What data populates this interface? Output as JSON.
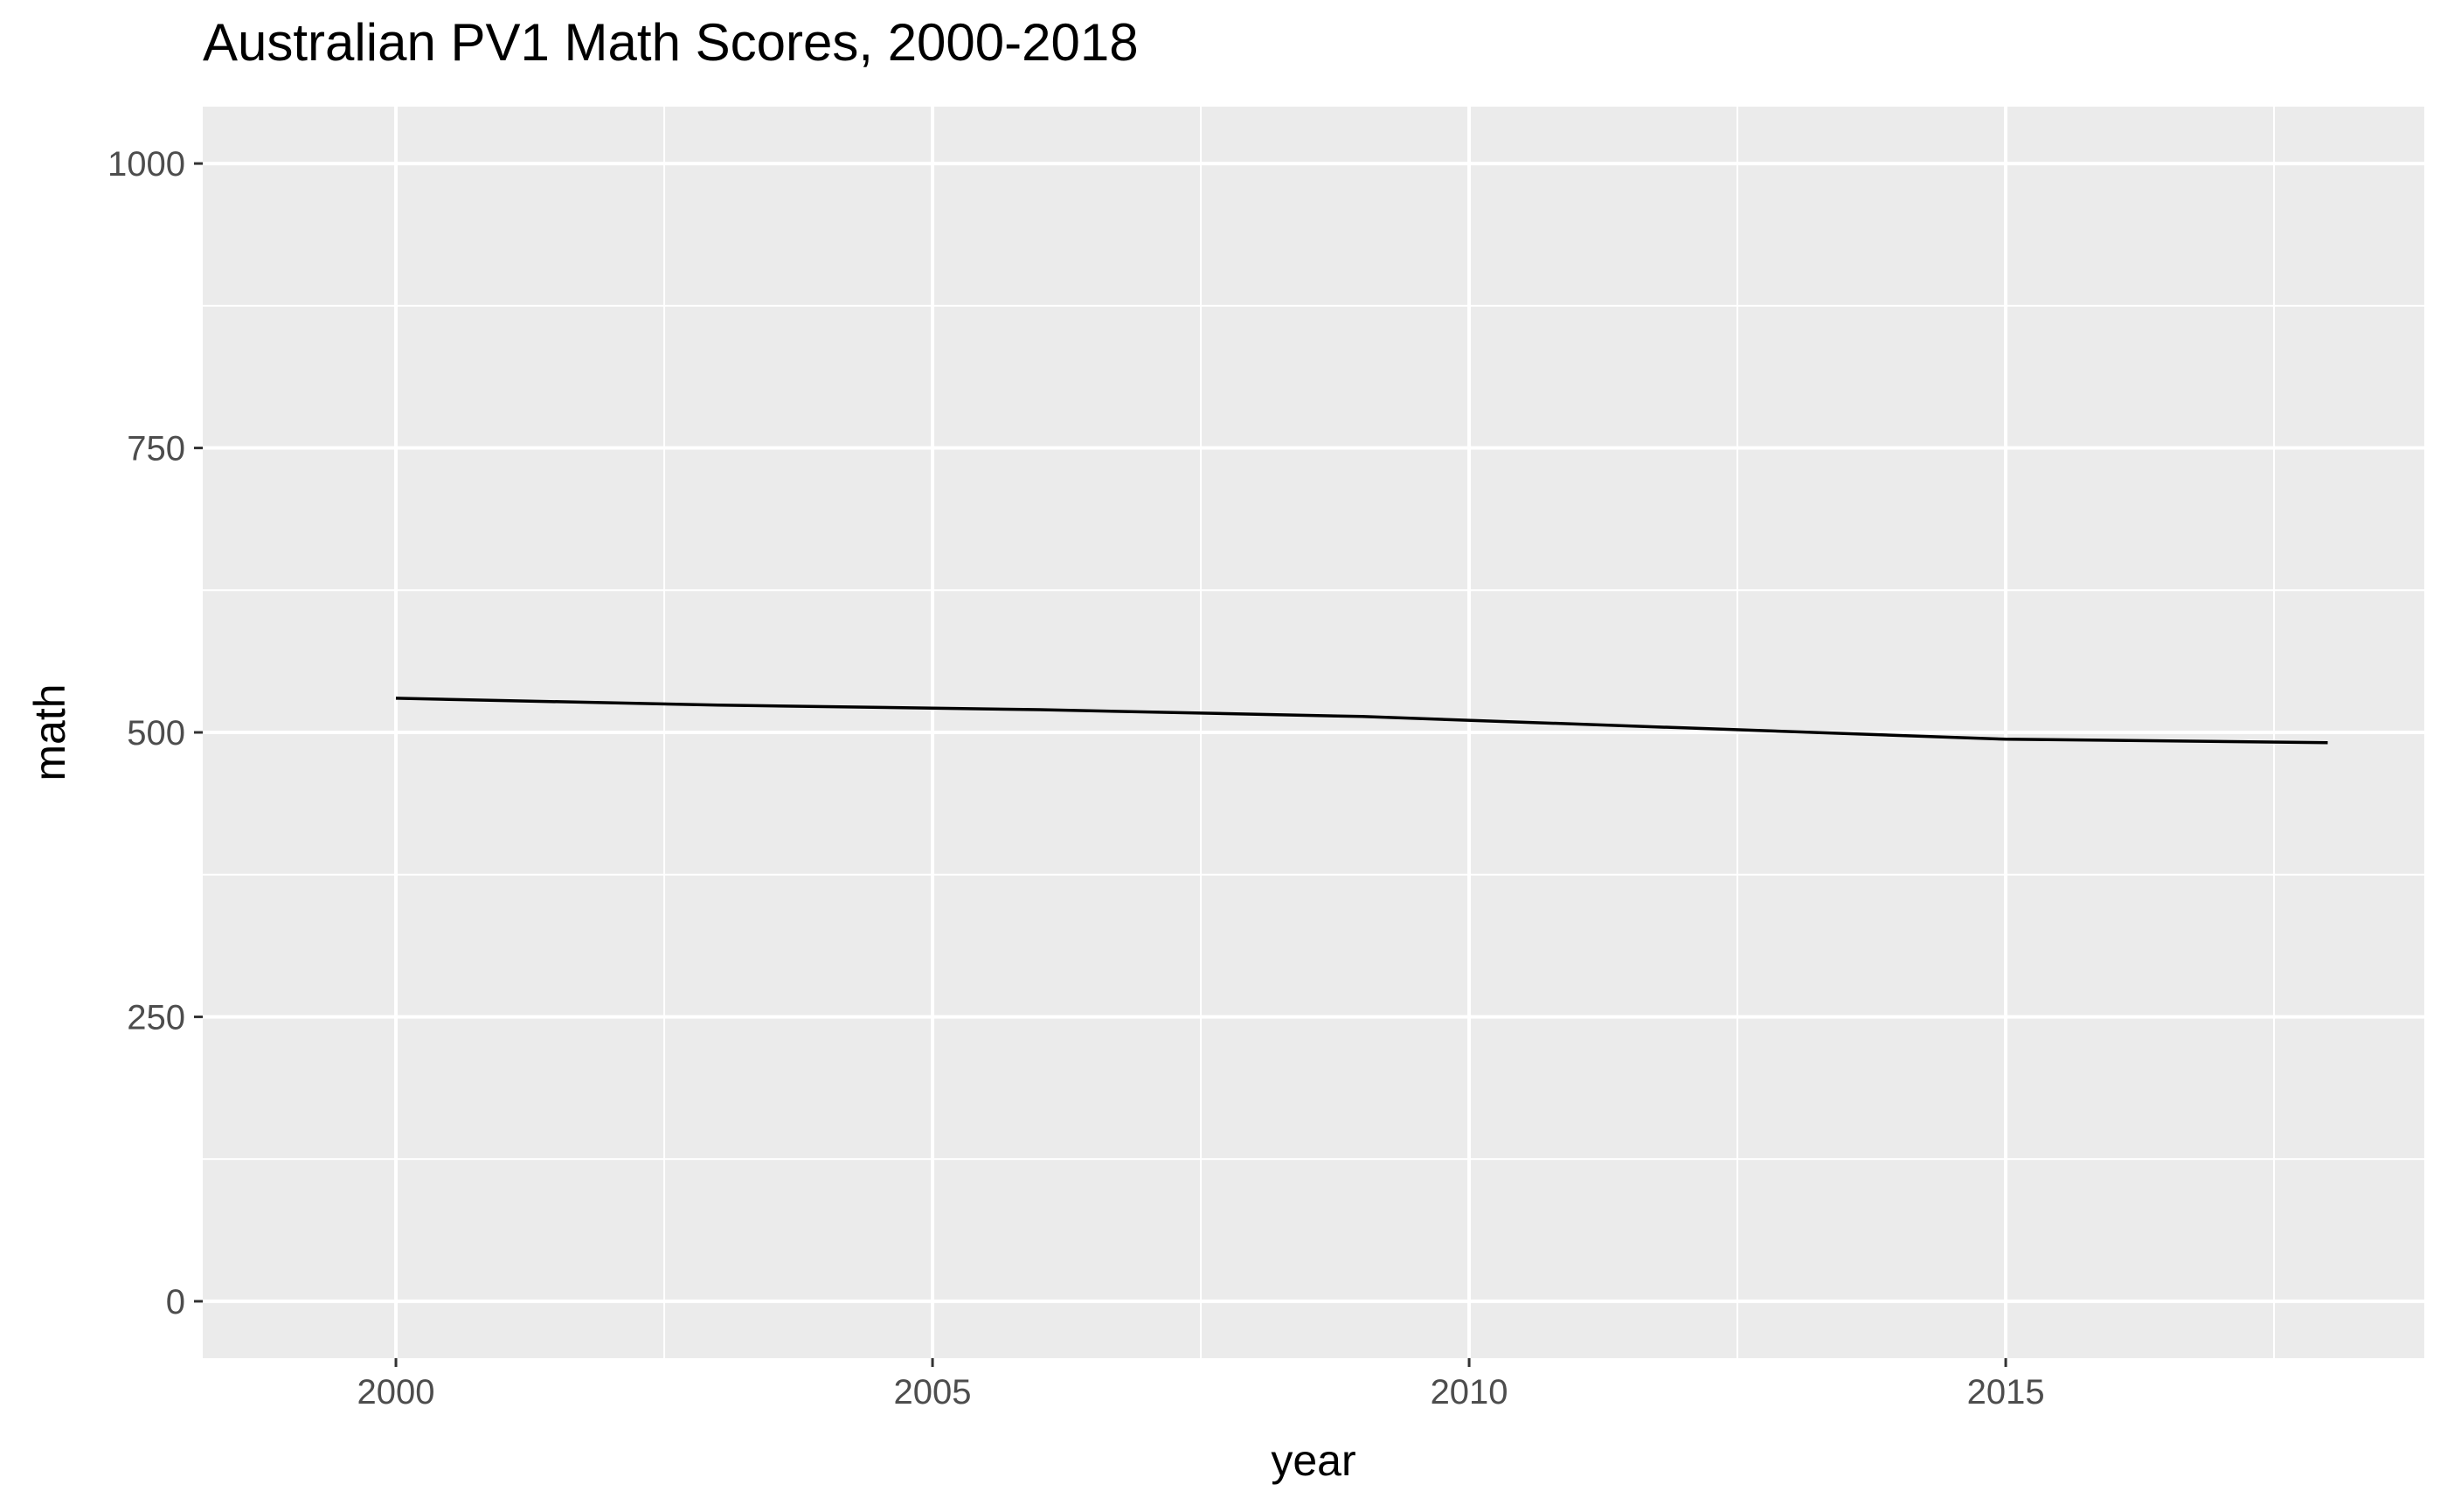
{
  "chart_data": {
    "type": "line",
    "title": "Australian PV1 Math Scores, 2000-2018",
    "xlabel": "year",
    "ylabel": "math",
    "xlim": [
      1998.2,
      2018.9
    ],
    "ylim": [
      -50,
      1050
    ],
    "x_ticks": [
      2000,
      2005,
      2010,
      2015
    ],
    "x_tick_labels": [
      "2000",
      "2005",
      "2010",
      "2015"
    ],
    "y_ticks": [
      0,
      250,
      500,
      750,
      1000
    ],
    "y_tick_labels": [
      "0",
      "250",
      "500",
      "750",
      "1000"
    ],
    "grid": true,
    "panel_background": "#ebebeb",
    "gridline_color": "#ffffff",
    "series": [
      {
        "color": "#000000",
        "x": [
          2000,
          2003,
          2006,
          2009,
          2012,
          2015,
          2018
        ],
        "y": [
          530,
          524,
          520,
          514,
          504,
          494,
          491
        ]
      }
    ]
  }
}
